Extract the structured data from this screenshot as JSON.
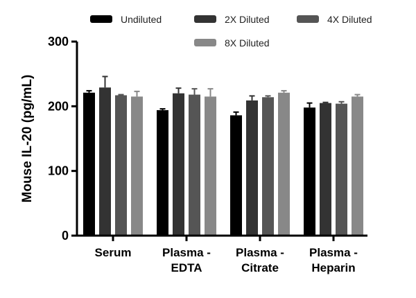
{
  "chart_data": {
    "type": "bar",
    "title": "",
    "xlabel": "",
    "ylabel": "Mouse IL-20 (pg/mL)",
    "ylim": [
      0,
      300
    ],
    "yticks": [
      0,
      100,
      200,
      300
    ],
    "grid": false,
    "legend_position": "top",
    "categories": [
      [
        "Serum"
      ],
      [
        "Plasma -",
        "EDTA"
      ],
      [
        "Plasma -",
        "Citrate"
      ],
      [
        "Plasma -",
        "Heparin"
      ]
    ],
    "series": [
      {
        "name": "Undiluted",
        "color": "#000000",
        "values": [
          221,
          194,
          186,
          198
        ],
        "errors": [
          3,
          2,
          5,
          7
        ]
      },
      {
        "name": "2X Diluted",
        "color": "#333333",
        "values": [
          229,
          220,
          209,
          205
        ],
        "errors": [
          17,
          8,
          7,
          1
        ]
      },
      {
        "name": "4X Diluted",
        "color": "#555555",
        "values": [
          217,
          218,
          214,
          204
        ],
        "errors": [
          1,
          9,
          2,
          3
        ]
      },
      {
        "name": "8X Diluted",
        "color": "#888888",
        "values": [
          215,
          215,
          221,
          215
        ],
        "errors": [
          8,
          12,
          3,
          3
        ]
      }
    ]
  }
}
